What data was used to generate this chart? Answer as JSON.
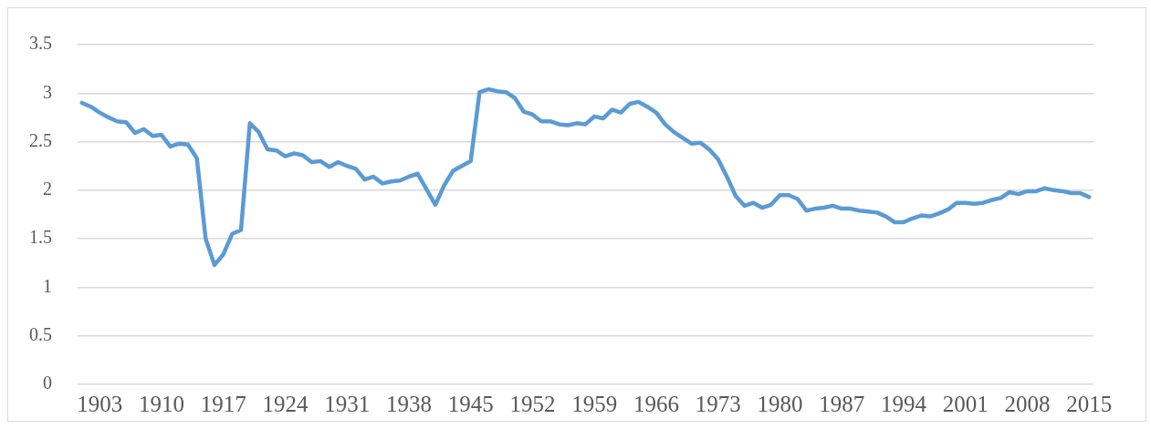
{
  "chart_data": {
    "type": "line",
    "categories": [
      null,
      null,
      "1903",
      null,
      null,
      null,
      null,
      null,
      null,
      "1910",
      null,
      null,
      null,
      null,
      null,
      null,
      "1917",
      null,
      null,
      null,
      null,
      null,
      null,
      "1924",
      null,
      null,
      null,
      null,
      null,
      null,
      "1931",
      null,
      null,
      null,
      null,
      null,
      null,
      "1938",
      null,
      null,
      null,
      null,
      null,
      null,
      "1945",
      null,
      null,
      null,
      null,
      null,
      null,
      "1952",
      null,
      null,
      null,
      null,
      null,
      null,
      "1959",
      null,
      null,
      null,
      null,
      null,
      null,
      "1966",
      null,
      null,
      null,
      null,
      null,
      null,
      "1973",
      null,
      null,
      null,
      null,
      null,
      null,
      "1980",
      null,
      null,
      null,
      null,
      null,
      null,
      "1987",
      null,
      null,
      null,
      null,
      null,
      null,
      "1994",
      null,
      null,
      null,
      null,
      null,
      null,
      "2001",
      null,
      null,
      null,
      null,
      null,
      null,
      "2008",
      null,
      null,
      null,
      null,
      null,
      null,
      "2015"
    ],
    "series": [
      {
        "color": "#5b9bd5",
        "values": [
          2.9,
          2.86,
          2.8,
          2.75,
          2.71,
          2.7,
          2.59,
          2.63,
          2.56,
          2.57,
          2.45,
          2.48,
          2.47,
          2.33,
          1.5,
          1.23,
          1.34,
          1.55,
          1.59,
          2.69,
          2.6,
          2.42,
          2.41,
          2.35,
          2.38,
          2.36,
          2.29,
          2.3,
          2.24,
          2.29,
          2.25,
          2.22,
          2.11,
          2.14,
          2.07,
          2.09,
          2.1,
          2.14,
          2.17,
          2.01,
          1.85,
          2.05,
          2.2,
          2.25,
          2.3,
          3.01,
          3.04,
          3.02,
          3.01,
          2.95,
          2.81,
          2.78,
          2.71,
          2.71,
          2.68,
          2.67,
          2.69,
          2.68,
          2.76,
          2.74,
          2.83,
          2.8,
          2.89,
          2.91,
          2.86,
          2.8,
          2.68,
          2.6,
          2.54,
          2.48,
          2.49,
          2.42,
          2.32,
          2.14,
          1.94,
          1.84,
          1.87,
          1.82,
          1.85,
          1.95,
          1.95,
          1.91,
          1.79,
          1.81,
          1.82,
          1.84,
          1.81,
          1.81,
          1.79,
          1.78,
          1.77,
          1.73,
          1.67,
          1.67,
          1.71,
          1.74,
          1.73,
          1.76,
          1.8,
          1.87,
          1.87,
          1.86,
          1.87,
          1.9,
          1.92,
          1.98,
          1.96,
          1.99,
          1.99,
          2.02,
          2.0,
          1.99,
          1.97,
          1.97,
          1.93
        ]
      }
    ],
    "ylim": [
      0,
      3.5
    ],
    "yticks": [
      0,
      0.5,
      1,
      1.5,
      2,
      2.5,
      3,
      3.5
    ],
    "grid": "y",
    "marker": "none",
    "line_style": "solid"
  }
}
